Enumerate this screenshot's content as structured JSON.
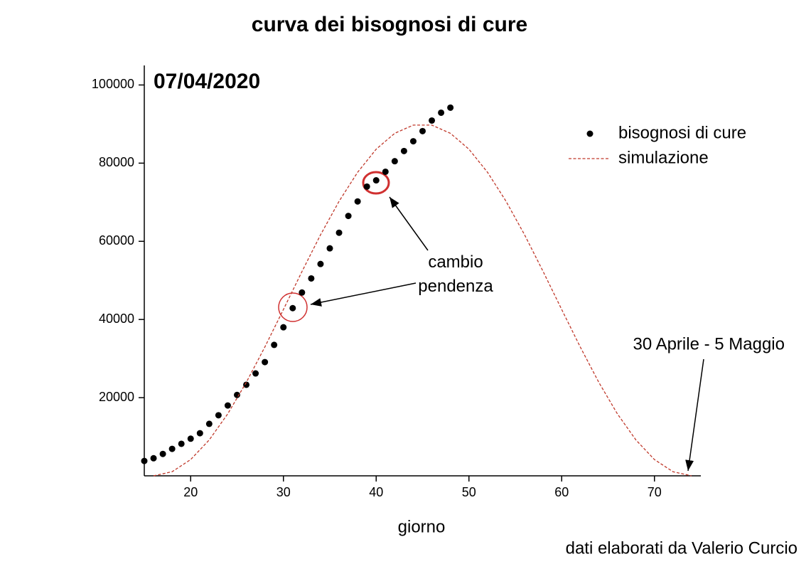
{
  "chart_data": {
    "type": "scatter",
    "title": "curva dei bisognosi di cure",
    "x_label": "giorno",
    "date_label": "07/04/2020",
    "annotation": "cambio pendenza",
    "end_label": "30 Aprile - 5 Maggio",
    "credit": "dati elaborati da Valerio Curcio",
    "xlim": [
      15,
      75
    ],
    "xticks": [
      20,
      30,
      40,
      50,
      60,
      70
    ],
    "ylim": [
      0,
      105000
    ],
    "yticks": [
      20000,
      40000,
      60000,
      80000,
      100000
    ],
    "legend": "upper right",
    "series": [
      {
        "name": "bisognosi di cure",
        "mode": "markers",
        "color": "#000000",
        "x": [
          15,
          16,
          17,
          18,
          19,
          20,
          21,
          22,
          23,
          24,
          25,
          26,
          27,
          28,
          29,
          30,
          31,
          32,
          33,
          34,
          35,
          36,
          37,
          38,
          39,
          40,
          41,
          42,
          43,
          44,
          45,
          46,
          47,
          48
        ],
        "values": [
          3800,
          4500,
          5600,
          6900,
          8200,
          9500,
          10900,
          13300,
          15500,
          18000,
          20700,
          23300,
          26200,
          29100,
          33500,
          38000,
          42900,
          46900,
          50500,
          54200,
          58200,
          62200,
          66500,
          70200,
          74000,
          75600,
          77800,
          80500,
          83100,
          85600,
          88200,
          90900,
          92900,
          94200
        ]
      },
      {
        "name": "simulazione",
        "mode": "dashed-line",
        "color": "#c0392b",
        "x": [
          16,
          18,
          20,
          22,
          24,
          26,
          28,
          30,
          32,
          34,
          36,
          38,
          40,
          42,
          44,
          46,
          48,
          50,
          52,
          54,
          56,
          58,
          60,
          62,
          64,
          66,
          68,
          70,
          72,
          74
        ],
        "values": [
          0,
          1050,
          4160,
          9180,
          15870,
          23930,
          32970,
          42560,
          52270,
          61660,
          70250,
          77670,
          83570,
          87640,
          89730,
          89730,
          87640,
          83570,
          77670,
          70250,
          61660,
          52270,
          42560,
          32970,
          23930,
          15870,
          9180,
          4160,
          1050,
          0
        ]
      }
    ]
  }
}
